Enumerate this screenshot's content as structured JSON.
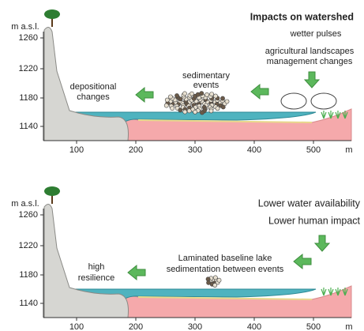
{
  "panels": [
    {
      "y_unit": "m a.s.l.",
      "yticks": [
        1260,
        1220,
        1180,
        1140
      ],
      "xticks": [
        100,
        200,
        300,
        400,
        500
      ],
      "x_unit": "m",
      "title": "Impacts on watershed",
      "labels": [
        "wetter pulses",
        "agricultural landscapes",
        "management changes",
        "sedimentary",
        "events",
        "depositional",
        "changes"
      ]
    },
    {
      "y_unit": "m a.s.l.",
      "yticks": [
        1260,
        1220,
        1180,
        1140
      ],
      "xticks": [
        100,
        200,
        300,
        400,
        500
      ],
      "x_unit": "m",
      "labels": [
        "Lower water availability",
        "Lower human impact",
        "Laminated baseline lake",
        "sedimentation between events",
        "high",
        "resilience"
      ]
    }
  ]
}
